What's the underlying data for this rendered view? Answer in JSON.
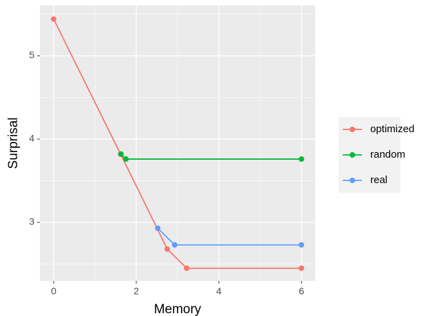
{
  "chart_data": {
    "type": "line",
    "x_label": "Memory",
    "y_label": "Surprisal",
    "series": [
      {
        "name": "optimized",
        "color": "#F8766D",
        "x": [
          0,
          1.62,
          2.75,
          3.22,
          6
        ],
        "values": [
          5.44,
          3.82,
          2.68,
          2.45,
          2.45
        ]
      },
      {
        "name": "random",
        "color": "#00BA38",
        "x": [
          1.63,
          1.75,
          6
        ],
        "values": [
          3.82,
          3.76,
          3.76
        ]
      },
      {
        "name": "real",
        "color": "#619CFF",
        "x": [
          2.52,
          2.93,
          6
        ],
        "values": [
          2.93,
          2.73,
          2.73
        ]
      }
    ],
    "xlim": [
      -0.333,
      6.333
    ],
    "xticks": [
      0,
      2,
      4,
      6
    ],
    "ylim": [
      2.298,
      5.603
    ],
    "yticks": [
      3,
      4,
      5
    ],
    "grid": true,
    "minor_grid": true,
    "legend": "right"
  }
}
